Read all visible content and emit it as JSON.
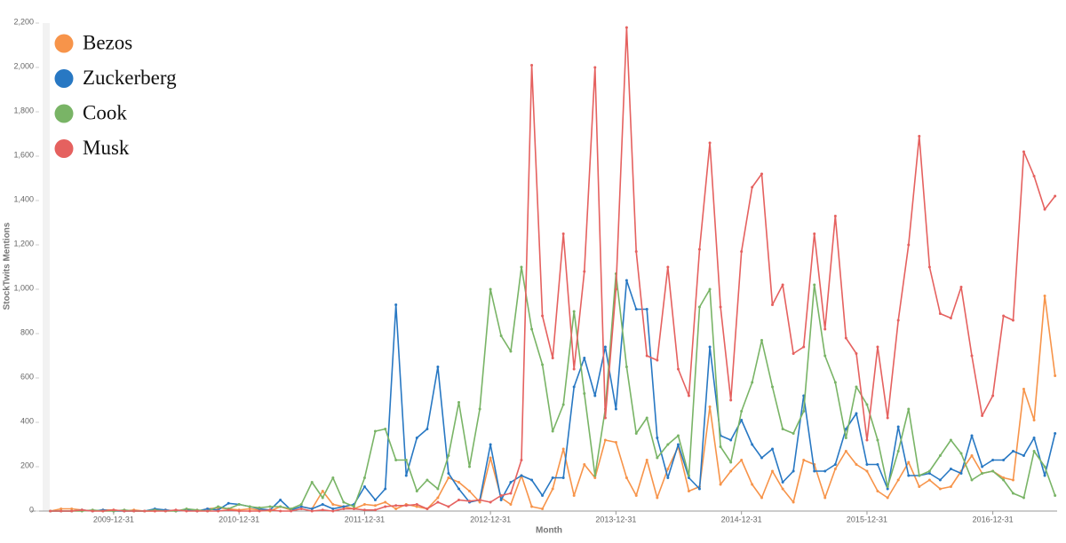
{
  "chart_data": {
    "type": "line",
    "x_label": "Month",
    "y_label": "StockTwits Mentions",
    "x": [
      "2009-06-30",
      "2009-07-31",
      "2009-08-31",
      "2009-09-30",
      "2009-10-31",
      "2009-11-30",
      "2009-12-31",
      "2010-01-31",
      "2010-02-28",
      "2010-03-31",
      "2010-04-30",
      "2010-05-31",
      "2010-06-30",
      "2010-07-31",
      "2010-08-31",
      "2010-09-30",
      "2010-10-31",
      "2010-11-30",
      "2010-12-31",
      "2011-01-31",
      "2011-02-28",
      "2011-03-31",
      "2011-04-30",
      "2011-05-31",
      "2011-06-30",
      "2011-07-31",
      "2011-08-31",
      "2011-09-30",
      "2011-10-31",
      "2011-11-30",
      "2011-12-31",
      "2012-01-31",
      "2012-02-29",
      "2012-03-31",
      "2012-04-30",
      "2012-05-31",
      "2012-06-30",
      "2012-07-31",
      "2012-08-31",
      "2012-09-30",
      "2012-10-31",
      "2012-11-30",
      "2012-12-31",
      "2013-01-31",
      "2013-02-28",
      "2013-03-31",
      "2013-04-30",
      "2013-05-31",
      "2013-06-30",
      "2013-07-31",
      "2013-08-31",
      "2013-09-30",
      "2013-10-31",
      "2013-11-30",
      "2013-12-31",
      "2014-01-31",
      "2014-02-28",
      "2014-03-31",
      "2014-04-30",
      "2014-05-31",
      "2014-06-30",
      "2014-07-31",
      "2014-08-31",
      "2014-09-30",
      "2014-10-31",
      "2014-11-30",
      "2014-12-31",
      "2015-01-31",
      "2015-02-28",
      "2015-03-31",
      "2015-04-30",
      "2015-05-31",
      "2015-06-30",
      "2015-07-31",
      "2015-08-31",
      "2015-09-30",
      "2015-10-31",
      "2015-11-30",
      "2015-12-31",
      "2016-01-31",
      "2016-02-29",
      "2016-03-31",
      "2016-04-30",
      "2016-05-31",
      "2016-06-30",
      "2016-07-31",
      "2016-08-31",
      "2016-09-30",
      "2016-10-31",
      "2016-11-30",
      "2016-12-31",
      "2017-01-31",
      "2017-02-28",
      "2017-03-31",
      "2017-04-30",
      "2017-05-31",
      "2017-06-30"
    ],
    "series": [
      {
        "name": "Bezos",
        "color": "#f7944a",
        "values": [
          0,
          10,
          10,
          5,
          0,
          5,
          5,
          0,
          5,
          0,
          0,
          5,
          0,
          5,
          0,
          10,
          15,
          10,
          5,
          10,
          5,
          0,
          20,
          5,
          20,
          10,
          90,
          30,
          20,
          10,
          30,
          25,
          40,
          10,
          30,
          20,
          10,
          60,
          150,
          130,
          90,
          40,
          240,
          60,
          30,
          160,
          20,
          10,
          100,
          280,
          70,
          210,
          150,
          320,
          310,
          150,
          70,
          230,
          60,
          190,
          290,
          90,
          110,
          470,
          120,
          180,
          230,
          120,
          60,
          180,
          100,
          40,
          230,
          210,
          60,
          190,
          270,
          210,
          180,
          90,
          60,
          140,
          220,
          110,
          140,
          100,
          110,
          180,
          250,
          170,
          180,
          150,
          140,
          550,
          410,
          970,
          610
        ]
      },
      {
        "name": "Zuckerberg",
        "color": "#2878c3",
        "values": [
          0,
          0,
          0,
          5,
          0,
          5,
          0,
          0,
          0,
          0,
          10,
          5,
          0,
          5,
          0,
          10,
          5,
          35,
          30,
          20,
          10,
          5,
          50,
          5,
          20,
          10,
          30,
          10,
          20,
          30,
          110,
          50,
          100,
          930,
          160,
          330,
          370,
          650,
          170,
          100,
          40,
          50,
          300,
          50,
          130,
          160,
          140,
          70,
          150,
          150,
          560,
          690,
          520,
          740,
          460,
          1040,
          910,
          910,
          330,
          150,
          300,
          150,
          100,
          740,
          340,
          320,
          410,
          300,
          240,
          280,
          130,
          180,
          520,
          180,
          180,
          210,
          370,
          440,
          210,
          210,
          100,
          380,
          160,
          160,
          170,
          140,
          190,
          170,
          340,
          200,
          230,
          230,
          270,
          250,
          330,
          160,
          350
        ]
      },
      {
        "name": "Cook",
        "color": "#79b466",
        "values": [
          0,
          0,
          0,
          0,
          5,
          0,
          0,
          5,
          0,
          0,
          5,
          0,
          0,
          10,
          5,
          0,
          20,
          10,
          30,
          20,
          15,
          20,
          20,
          10,
          30,
          130,
          60,
          150,
          40,
          20,
          150,
          360,
          370,
          230,
          230,
          90,
          140,
          100,
          250,
          490,
          200,
          460,
          1000,
          790,
          720,
          1100,
          820,
          660,
          360,
          480,
          900,
          530,
          160,
          460,
          1070,
          650,
          350,
          420,
          240,
          300,
          340,
          160,
          920,
          1000,
          290,
          220,
          450,
          580,
          770,
          560,
          370,
          350,
          450,
          1020,
          700,
          580,
          330,
          560,
          480,
          320,
          110,
          270,
          460,
          160,
          180,
          250,
          320,
          260,
          140,
          170,
          180,
          140,
          80,
          60,
          270,
          200,
          70
        ]
      },
      {
        "name": "Musk",
        "color": "#e5615f",
        "values": [
          0,
          0,
          0,
          5,
          0,
          0,
          5,
          0,
          0,
          0,
          0,
          0,
          5,
          0,
          0,
          0,
          0,
          5,
          0,
          0,
          0,
          5,
          0,
          0,
          10,
          0,
          5,
          0,
          10,
          10,
          5,
          5,
          20,
          25,
          25,
          30,
          10,
          40,
          20,
          50,
          45,
          50,
          40,
          70,
          80,
          230,
          2010,
          880,
          690,
          1250,
          640,
          1080,
          2000,
          420,
          1000,
          2180,
          1170,
          700,
          680,
          1100,
          640,
          520,
          1180,
          1660,
          920,
          500,
          1170,
          1460,
          1520,
          930,
          1020,
          710,
          740,
          1250,
          820,
          1330,
          780,
          710,
          320,
          740,
          420,
          860,
          1200,
          1690,
          1100,
          890,
          870,
          1010,
          700,
          430,
          520,
          880,
          860,
          1620,
          1510,
          1360,
          1420
        ]
      }
    ],
    "xlim": [
      "2009-05-05",
      "2017-07-06"
    ],
    "xticks": [
      "2009-12-31",
      "2010-12-31",
      "2011-12-31",
      "2012-12-31",
      "2013-12-31",
      "2014-12-31",
      "2015-12-31",
      "2016-12-31"
    ],
    "ylim": [
      0,
      2200
    ],
    "yticks": [
      0,
      200,
      400,
      600,
      800,
      {
        "value": 1000,
        "label": "1,000"
      },
      {
        "value": 1200,
        "label": "1,200"
      },
      {
        "value": 1400,
        "label": "1,400"
      },
      {
        "value": 1600,
        "label": "1,600"
      },
      {
        "value": 1800,
        "label": "1,800"
      },
      {
        "value": 2000,
        "label": "2,000"
      },
      {
        "value": 2200,
        "label": "2,200"
      }
    ],
    "legend": "top-left"
  }
}
